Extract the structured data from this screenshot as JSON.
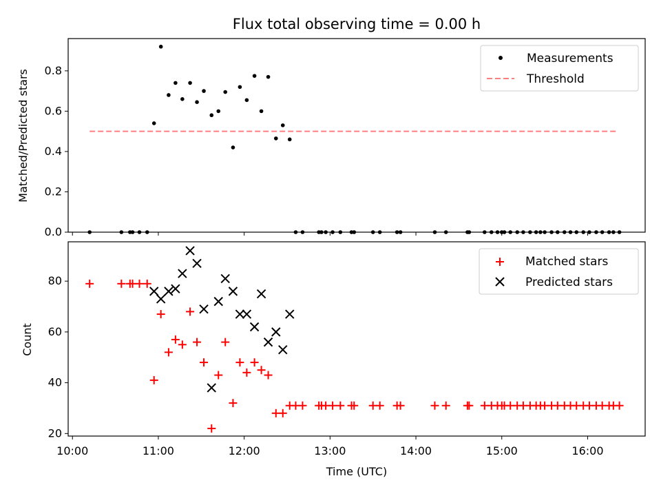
{
  "chart_data": [
    {
      "type": "scatter",
      "title": "Flux total observing time = 0.00 h",
      "xlabel": "",
      "ylabel": "Matched/Predicted stars",
      "x_unit": "hours (UTC, decimal)",
      "xlim": [
        9.95,
        16.67
      ],
      "ylim": [
        0,
        0.96
      ],
      "yticks": [
        0.0,
        0.2,
        0.4,
        0.6,
        0.8
      ],
      "ytick_labels": [
        "0.0",
        "0.2",
        "0.4",
        "0.6",
        "0.8"
      ],
      "legend": "top-right",
      "grid": false,
      "threshold": {
        "name": "Threshold",
        "value": 0.5,
        "x_range": [
          10.2,
          16.35
        ],
        "color": "#ff7f7f",
        "style": "dashed"
      },
      "series": [
        {
          "name": "Measurements",
          "marker": "dot",
          "color": "#000000",
          "x": [
            10.2,
            10.95,
            11.03,
            11.12,
            11.2,
            11.28,
            11.37,
            11.45,
            11.53,
            11.62,
            11.7,
            11.78,
            11.87,
            11.95,
            12.03,
            12.12,
            12.2,
            12.28,
            12.37,
            12.45,
            12.53,
            12.6,
            12.68,
            12.87,
            12.9,
            12.95,
            13.03,
            13.12,
            13.25,
            13.28,
            13.5,
            13.58,
            13.78,
            13.82,
            14.22,
            14.35,
            14.6,
            14.62,
            14.8,
            14.88,
            14.95,
            15.0,
            15.03,
            15.1,
            15.18,
            15.25,
            15.33,
            15.4,
            15.45,
            15.5,
            15.58,
            15.65,
            15.73,
            15.8,
            15.87,
            15.95,
            16.02,
            16.1,
            16.17,
            16.25,
            16.3,
            16.37,
            10.57,
            10.67,
            10.7,
            10.78,
            10.87
          ],
          "y": [
            0.0,
            0.54,
            0.92,
            0.68,
            0.74,
            0.66,
            0.74,
            0.645,
            0.7,
            0.58,
            0.6,
            0.695,
            0.42,
            0.72,
            0.655,
            0.775,
            0.6,
            0.77,
            0.465,
            0.53,
            0.46,
            0.0,
            0.0,
            0.0,
            0.0,
            0.0,
            0.0,
            0.0,
            0.0,
            0.0,
            0.0,
            0.0,
            0.0,
            0.0,
            0.0,
            0.0,
            0.0,
            0.0,
            0.0,
            0.0,
            0.0,
            0.0,
            0.0,
            0.0,
            0.0,
            0.0,
            0.0,
            0.0,
            0.0,
            0.0,
            0.0,
            0.0,
            0.0,
            0.0,
            0.0,
            0.0,
            0.0,
            0.0,
            0.0,
            0.0,
            0.0,
            0.0,
            0.0,
            0.0,
            0.0,
            0.0,
            0.0
          ]
        }
      ]
    },
    {
      "type": "scatter",
      "title": "",
      "xlabel": "Time (UTC)",
      "ylabel": "Count",
      "x_unit": "hours (UTC, decimal)",
      "xlim": [
        9.95,
        16.67
      ],
      "ylim": [
        19,
        95.5
      ],
      "xticks": [
        10,
        11,
        12,
        13,
        14,
        15,
        16
      ],
      "xtick_labels": [
        "10:00",
        "11:00",
        "12:00",
        "13:00",
        "14:00",
        "15:00",
        "16:00"
      ],
      "yticks": [
        20,
        40,
        60,
        80
      ],
      "ytick_labels": [
        "20",
        "40",
        "60",
        "80"
      ],
      "legend": "top-right",
      "grid": false,
      "series": [
        {
          "name": "Matched stars",
          "marker": "plus",
          "color": "#ff0000",
          "x": [
            10.2,
            10.57,
            10.67,
            10.7,
            10.78,
            10.87,
            10.95,
            11.03,
            11.12,
            11.2,
            11.28,
            11.37,
            11.45,
            11.53,
            11.62,
            11.7,
            11.78,
            11.87,
            11.95,
            12.03,
            12.12,
            12.2,
            12.28,
            12.37,
            12.45,
            12.53,
            12.6,
            12.68,
            12.87,
            12.9,
            12.95,
            13.03,
            13.12,
            13.25,
            13.28,
            13.5,
            13.58,
            13.78,
            13.82,
            14.22,
            14.35,
            14.6,
            14.62,
            14.8,
            14.88,
            14.95,
            15.0,
            15.03,
            15.1,
            15.18,
            15.25,
            15.33,
            15.4,
            15.45,
            15.5,
            15.58,
            15.65,
            15.73,
            15.8,
            15.87,
            15.95,
            16.02,
            16.1,
            16.17,
            16.25,
            16.3,
            16.37
          ],
          "y": [
            79,
            79,
            79,
            79,
            79,
            79,
            41,
            67,
            52,
            57,
            55,
            68,
            56,
            48,
            22,
            43,
            56,
            32,
            48,
            44,
            48,
            45,
            43,
            28,
            28,
            31,
            31,
            31,
            31,
            31,
            31,
            31,
            31,
            31,
            31,
            31,
            31,
            31,
            31,
            31,
            31,
            31,
            31,
            31,
            31,
            31,
            31,
            31,
            31,
            31,
            31,
            31,
            31,
            31,
            31,
            31,
            31,
            31,
            31,
            31,
            31,
            31,
            31,
            31,
            31,
            31,
            31
          ]
        },
        {
          "name": "Predicted stars",
          "marker": "x",
          "color": "#000000",
          "x": [
            10.95,
            11.03,
            11.12,
            11.2,
            11.28,
            11.37,
            11.45,
            11.53,
            11.62,
            11.7,
            11.78,
            11.87,
            11.95,
            12.03,
            12.12,
            12.2,
            12.28,
            12.37,
            12.45,
            12.53
          ],
          "y": [
            76,
            73,
            76,
            77,
            83,
            92,
            87,
            69,
            38,
            72,
            81,
            76,
            67,
            67,
            62,
            75,
            56,
            60,
            53,
            67
          ]
        }
      ]
    }
  ]
}
